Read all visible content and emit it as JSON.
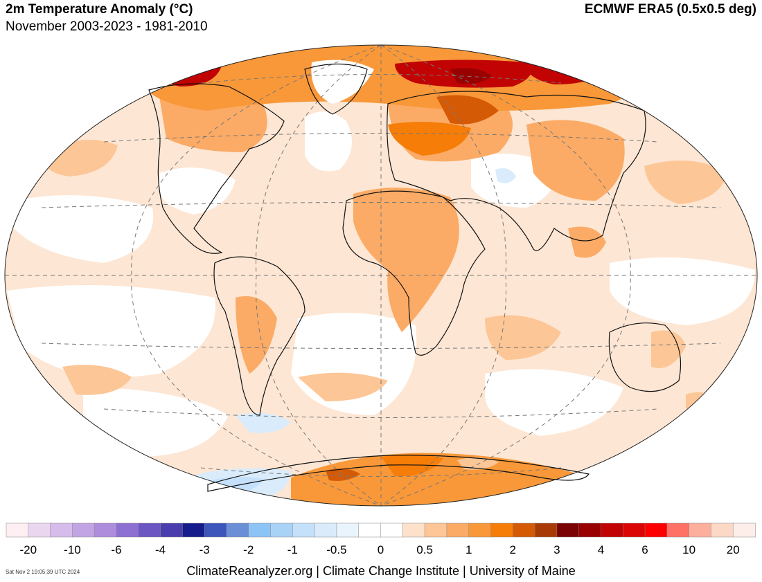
{
  "header": {
    "title": "2m Temperature Anomaly (°C)",
    "subtitle": "November 2003-2023 - 1981-2010",
    "source": "ECMWF ERA5 (0.5x0.5 deg)"
  },
  "colorbar": {
    "colors": [
      "#fdeef2",
      "#ead7ef",
      "#d5bcea",
      "#c2a4e4",
      "#ad8ddc",
      "#8e6fd2",
      "#6c56c2",
      "#4a3eae",
      "#161c8c",
      "#3d56bc",
      "#6b8fd6",
      "#8cc4f5",
      "#a9d2f7",
      "#c4e0fa",
      "#daecfc",
      "#eaf4fd",
      "#ffffff",
      "#ffffff",
      "#fde1cb",
      "#fcc696",
      "#fbab66",
      "#f99839",
      "#f57d08",
      "#d55a06",
      "#a83b05",
      "#7a0303",
      "#990000",
      "#c10303",
      "#dc0505",
      "#ff0000",
      "#ff7165",
      "#fcaf9c",
      "#fcd9c6",
      "#fdeee9"
    ],
    "tick_labels": [
      "-20",
      "-10",
      "-6",
      "-4",
      "-3",
      "-2",
      "-1",
      "-0.5",
      "0",
      "0.5",
      "1",
      "2",
      "3",
      "4",
      "6",
      "10",
      "20"
    ]
  },
  "footer": {
    "timestamp": "Sat Nov  2 19:05:39 UTC 2024",
    "credits": "ClimateReanalyzer.org | Climate Change Institute | University of Maine"
  }
}
